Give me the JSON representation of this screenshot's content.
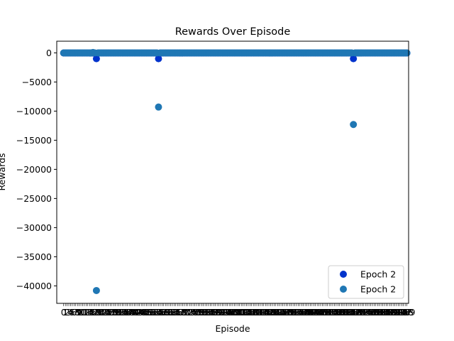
{
  "chart_data": {
    "type": "scatter",
    "title": "Rewards Over Episode",
    "xlabel": "Episode",
    "ylabel": "Rewards",
    "xlim": [
      -4,
      200
    ],
    "ylim": [
      -43000,
      2000
    ],
    "yticks": [
      0,
      -5000,
      -10000,
      -15000,
      -20000,
      -25000,
      -30000,
      -35000,
      -40000
    ],
    "xticks_note": "dense overlapping integer tick labels, one per episode",
    "x_start": 0,
    "x_end": 199,
    "grid": false,
    "legend_position": "lower right",
    "series": [
      {
        "name": "Epoch 2",
        "color": "#0033cc",
        "baseline": -30,
        "outliers": [
          {
            "x": 19,
            "y": -1000
          },
          {
            "x": 55,
            "y": -1000
          },
          {
            "x": 168,
            "y": -1000
          }
        ]
      },
      {
        "name": "Epoch 2",
        "color": "#1f77b4",
        "baseline": -10,
        "outliers": [
          {
            "x": 17,
            "y": 60
          },
          {
            "x": 19,
            "y": -40800
          },
          {
            "x": 55,
            "y": -9300
          },
          {
            "x": 168,
            "y": -12300
          }
        ]
      }
    ]
  }
}
